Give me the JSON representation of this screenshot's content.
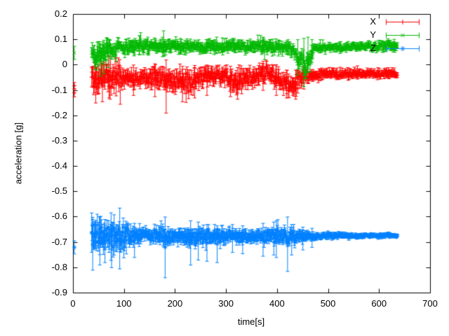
{
  "figure": {
    "background": "#ffffff",
    "axis_color": "#000000",
    "text_color": "#000000"
  },
  "chart_data": {
    "type": "scatter",
    "style": "errorbars",
    "title": "",
    "xlabel": "time[s]",
    "ylabel": "acceleration [g]",
    "xlim": [
      0,
      700
    ],
    "ylim": [
      -0.9,
      0.2
    ],
    "xtick_values": [
      0,
      100,
      200,
      300,
      400,
      500,
      600,
      700
    ],
    "xtick_labels": [
      "0",
      "100",
      "200",
      "300",
      "400",
      "500",
      "600",
      "700"
    ],
    "ytick_values": [
      0.2,
      0.1,
      0,
      -0.1,
      -0.2,
      -0.3,
      -0.4,
      -0.5,
      -0.6,
      -0.7,
      -0.8,
      -0.9
    ],
    "ytick_labels": [
      "0.2",
      "0.1",
      "0",
      "-0.1",
      "-0.2",
      "-0.3",
      "-0.4",
      "-0.5",
      "-0.6",
      "-0.7",
      "-0.8",
      "-0.9"
    ],
    "grid": false,
    "legend_position": "top-right",
    "sample_dt": 1,
    "time_range": [
      36,
      635
    ],
    "series": [
      {
        "name": "X",
        "color": "#ff0000",
        "marker": "plus",
        "seed": 11,
        "initial_points": [
          [
            2,
            -0.082,
            0.013
          ],
          [
            2,
            -0.11,
            0.016
          ]
        ],
        "envelope": [
          [
            36,
            -0.05,
            0.05
          ],
          [
            50,
            -0.06,
            0.055
          ],
          [
            65,
            -0.04,
            0.045
          ],
          [
            85,
            -0.045,
            0.048
          ],
          [
            100,
            -0.05,
            0.03
          ],
          [
            130,
            -0.05,
            0.028
          ],
          [
            160,
            -0.045,
            0.032
          ],
          [
            182,
            -0.05,
            0.035
          ],
          [
            205,
            -0.065,
            0.035
          ],
          [
            225,
            -0.07,
            0.038
          ],
          [
            245,
            -0.05,
            0.028
          ],
          [
            265,
            -0.05,
            0.03
          ],
          [
            285,
            -0.035,
            0.03
          ],
          [
            305,
            -0.06,
            0.033
          ],
          [
            320,
            -0.07,
            0.035
          ],
          [
            335,
            -0.05,
            0.03
          ],
          [
            360,
            -0.045,
            0.028
          ],
          [
            378,
            -0.03,
            0.03
          ],
          [
            395,
            -0.05,
            0.03
          ],
          [
            415,
            -0.075,
            0.033
          ],
          [
            432,
            -0.08,
            0.035
          ],
          [
            448,
            -0.05,
            0.025
          ],
          [
            465,
            -0.04,
            0.018
          ],
          [
            500,
            -0.036,
            0.015
          ],
          [
            560,
            -0.035,
            0.014
          ],
          [
            635,
            -0.035,
            0.014
          ]
        ],
        "outliers": [
          [
            44,
            -0.15,
            0.01
          ],
          [
            57,
            -0.145,
            0.0
          ],
          [
            70,
            -0.13,
            0.0
          ],
          [
            92,
            -0.155,
            -0.01
          ],
          [
            118,
            -0.12,
            0.0
          ],
          [
            160,
            -0.125,
            0.005
          ],
          [
            182,
            -0.19,
            0.02
          ],
          [
            214,
            -0.145,
            -0.005
          ],
          [
            238,
            -0.13,
            -0.01
          ],
          [
            262,
            -0.12,
            0.0
          ],
          [
            308,
            -0.125,
            -0.005
          ],
          [
            322,
            -0.135,
            -0.01
          ],
          [
            372,
            -0.1,
            0.015
          ],
          [
            398,
            -0.12,
            0.0
          ],
          [
            418,
            -0.13,
            -0.02
          ],
          [
            436,
            -0.135,
            -0.02
          ],
          [
            452,
            -0.095,
            -0.005
          ]
        ]
      },
      {
        "name": "Y",
        "color": "#00b800",
        "marker": "cross",
        "seed": 22,
        "initial_points": [
          [
            2,
            0.048,
            0.026
          ]
        ],
        "envelope": [
          [
            36,
            0.055,
            0.035
          ],
          [
            55,
            0.045,
            0.042
          ],
          [
            70,
            0.065,
            0.03
          ],
          [
            100,
            0.068,
            0.022
          ],
          [
            130,
            0.075,
            0.026
          ],
          [
            150,
            0.072,
            0.024
          ],
          [
            180,
            0.07,
            0.02
          ],
          [
            210,
            0.076,
            0.022
          ],
          [
            230,
            0.07,
            0.018
          ],
          [
            270,
            0.072,
            0.018
          ],
          [
            310,
            0.078,
            0.02
          ],
          [
            330,
            0.07,
            0.018
          ],
          [
            370,
            0.075,
            0.022
          ],
          [
            400,
            0.072,
            0.018
          ],
          [
            425,
            0.062,
            0.02
          ],
          [
            440,
            0.03,
            0.025
          ],
          [
            455,
            -0.005,
            0.03
          ],
          [
            463,
            0.02,
            0.032
          ],
          [
            472,
            0.062,
            0.015
          ],
          [
            500,
            0.068,
            0.013
          ],
          [
            560,
            0.072,
            0.014
          ],
          [
            635,
            0.075,
            0.015
          ]
        ],
        "outliers": [
          [
            47,
            -0.02,
            0.09
          ],
          [
            53,
            -0.045,
            0.085
          ],
          [
            60,
            -0.035,
            0.08
          ],
          [
            68,
            -0.01,
            0.09
          ],
          [
            130,
            0.04,
            0.115
          ],
          [
            146,
            0.045,
            0.11
          ],
          [
            177,
            0.035,
            0.135
          ],
          [
            210,
            0.05,
            0.105
          ],
          [
            262,
            0.05,
            0.1
          ],
          [
            315,
            0.055,
            0.105
          ],
          [
            372,
            0.05,
            0.11
          ],
          [
            440,
            -0.04,
            0.1
          ],
          [
            452,
            -0.085,
            0.105
          ],
          [
            460,
            -0.03,
            0.11
          ],
          [
            468,
            0.01,
            0.1
          ]
        ]
      },
      {
        "name": "Z",
        "color": "#0080ff",
        "marker": "asterisk",
        "seed": 33,
        "initial_points": [
          [
            2,
            -0.72,
            0.026
          ]
        ],
        "envelope": [
          [
            36,
            -0.68,
            0.055
          ],
          [
            75,
            -0.68,
            0.05
          ],
          [
            100,
            -0.678,
            0.042
          ],
          [
            120,
            -0.675,
            0.026
          ],
          [
            150,
            -0.672,
            0.018
          ],
          [
            175,
            -0.674,
            0.032
          ],
          [
            200,
            -0.675,
            0.02
          ],
          [
            225,
            -0.676,
            0.032
          ],
          [
            265,
            -0.675,
            0.022
          ],
          [
            290,
            -0.676,
            0.028
          ],
          [
            330,
            -0.675,
            0.02
          ],
          [
            360,
            -0.676,
            0.021
          ],
          [
            395,
            -0.677,
            0.028
          ],
          [
            430,
            -0.676,
            0.026
          ],
          [
            460,
            -0.675,
            0.015
          ],
          [
            480,
            -0.675,
            0.012
          ],
          [
            520,
            -0.674,
            0.01
          ],
          [
            560,
            -0.674,
            0.008
          ],
          [
            635,
            -0.673,
            0.007
          ]
        ],
        "outliers": [
          [
            38,
            -0.81,
            -0.61
          ],
          [
            52,
            -0.79,
            -0.6
          ],
          [
            62,
            -0.78,
            -0.61
          ],
          [
            75,
            -0.8,
            -0.62
          ],
          [
            91,
            -0.805,
            -0.565
          ],
          [
            120,
            -0.76,
            -0.625
          ],
          [
            180,
            -0.84,
            -0.6
          ],
          [
            230,
            -0.79,
            -0.615
          ],
          [
            245,
            -0.77,
            -0.62
          ],
          [
            262,
            -0.775,
            -0.63
          ],
          [
            282,
            -0.78,
            -0.635
          ],
          [
            312,
            -0.74,
            -0.63
          ],
          [
            332,
            -0.745,
            -0.635
          ],
          [
            372,
            -0.755,
            -0.625
          ],
          [
            393,
            -0.75,
            -0.62
          ],
          [
            398,
            -0.76,
            -0.615
          ],
          [
            420,
            -0.815,
            -0.6
          ],
          [
            428,
            -0.75,
            -0.63
          ],
          [
            450,
            -0.73,
            -0.64
          ],
          [
            468,
            -0.72,
            -0.645
          ]
        ]
      }
    ]
  }
}
